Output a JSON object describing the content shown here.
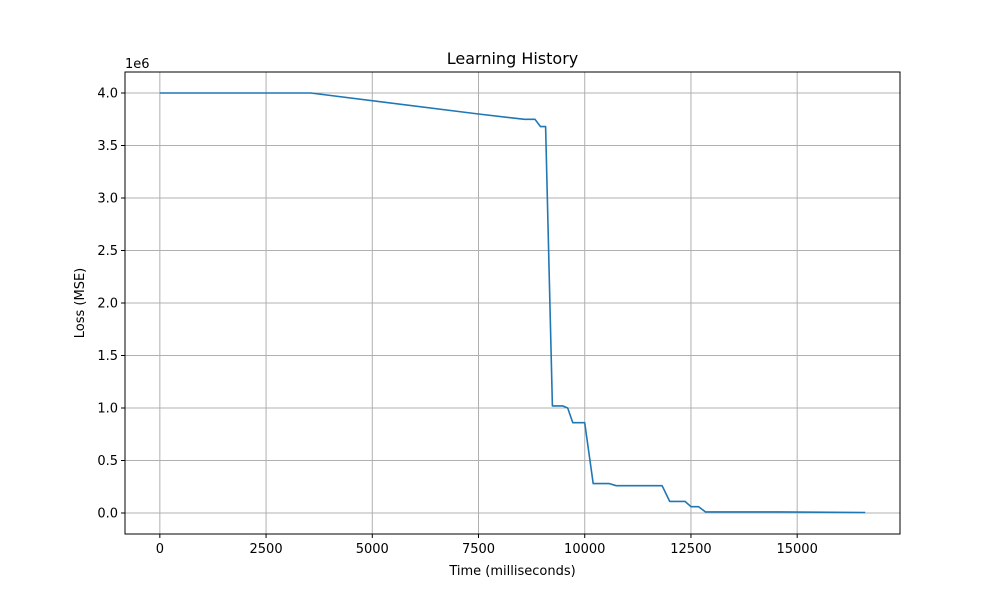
{
  "chart_data": {
    "type": "line",
    "title": "Learning History",
    "xlabel": "Time (milliseconds)",
    "ylabel": "Loss (MSE)",
    "y_offset_label": "1e6",
    "xlim": [
      -820,
      17420
    ],
    "ylim": [
      -200000,
      4200000
    ],
    "x_ticks": [
      0,
      2500,
      5000,
      7500,
      10000,
      12500,
      15000
    ],
    "x_tick_labels": [
      "0",
      "2500",
      "5000",
      "7500",
      "10000",
      "12500",
      "15000"
    ],
    "y_ticks": [
      0,
      500000,
      1000000,
      1500000,
      2000000,
      2500000,
      3000000,
      3500000,
      4000000
    ],
    "y_tick_labels": [
      "0.0",
      "0.5",
      "1.0",
      "1.5",
      "2.0",
      "2.5",
      "3.0",
      "3.5",
      "4.0"
    ],
    "grid": true,
    "series": [
      {
        "color": "#1f77b4",
        "x": [
          0,
          3550,
          7500,
          8580,
          8830,
          8960,
          9080,
          9240,
          9480,
          9600,
          9720,
          10000,
          10200,
          10580,
          10740,
          11820,
          12000,
          12360,
          12500,
          12680,
          12840,
          14600,
          16600
        ],
        "y": [
          4000000,
          4000000,
          3800000,
          3750000,
          3750000,
          3680000,
          3680000,
          1020000,
          1020000,
          1000000,
          860000,
          860000,
          280000,
          280000,
          260000,
          260000,
          110000,
          110000,
          60000,
          60000,
          10000,
          10000,
          5000
        ]
      }
    ]
  }
}
